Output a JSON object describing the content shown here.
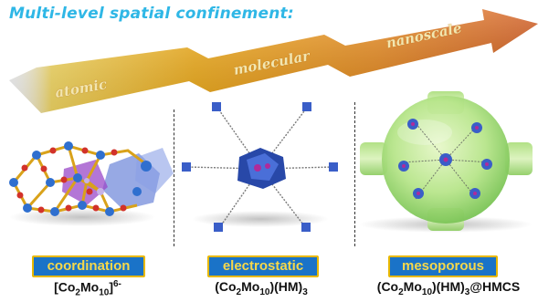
{
  "title": "Multi-level spatial confinement:",
  "levels": [
    {
      "arrow_label": "atomic",
      "badge": "coordination",
      "formula": {
        "p1": "[Co",
        "s1": "2",
        "p2": "Mo",
        "s2": "10",
        "p3": "]",
        "sup": "6-",
        "p4": ""
      }
    },
    {
      "arrow_label": "molecular",
      "badge": "electrostatic",
      "formula": {
        "p1": "(Co",
        "s1": "2",
        "p2": "Mo",
        "s2": "10",
        "p3": ")(HM)",
        "s3": "3",
        "p4": ""
      }
    },
    {
      "arrow_label": "nanoscale",
      "badge": "mesoporous",
      "formula": {
        "p1": "(Co",
        "s1": "2",
        "p2": "Mo",
        "s2": "10",
        "p3": ")(HM)",
        "s3": "3",
        "p4": "@HMCS"
      }
    }
  ],
  "colors": {
    "title": "#2fb7e6",
    "arrow_start": "#ffd21a",
    "arrow_end": "#d25a17",
    "badge_bg": "#1a73c8",
    "badge_border": "#e8b800",
    "badge_text": "#f6d84a"
  }
}
